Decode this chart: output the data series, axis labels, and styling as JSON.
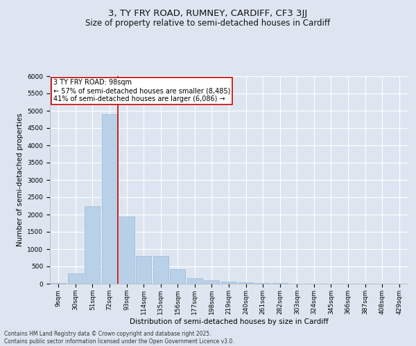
{
  "title1": "3, TY FRY ROAD, RUMNEY, CARDIFF, CF3 3JJ",
  "title2": "Size of property relative to semi-detached houses in Cardiff",
  "xlabel": "Distribution of semi-detached houses by size in Cardiff",
  "ylabel": "Number of semi-detached properties",
  "categories": [
    "9sqm",
    "30sqm",
    "51sqm",
    "72sqm",
    "93sqm",
    "114sqm",
    "135sqm",
    "156sqm",
    "177sqm",
    "198sqm",
    "219sqm",
    "240sqm",
    "261sqm",
    "282sqm",
    "303sqm",
    "324sqm",
    "345sqm",
    "366sqm",
    "387sqm",
    "408sqm",
    "429sqm"
  ],
  "values": [
    30,
    300,
    2250,
    4900,
    1950,
    800,
    800,
    420,
    165,
    110,
    65,
    40,
    20,
    12,
    8,
    5,
    3,
    2,
    1,
    1,
    0
  ],
  "bar_color": "#b8d0e8",
  "bar_edgecolor": "#9ab8d8",
  "vline_color": "#cc0000",
  "annotation_title": "3 TY FRY ROAD: 98sqm",
  "annotation_line1": "← 57% of semi-detached houses are smaller (8,485)",
  "annotation_line2": "41% of semi-detached houses are larger (6,086) →",
  "annotation_box_facecolor": "#ffffff",
  "annotation_box_edgecolor": "#cc0000",
  "ylim": [
    0,
    6000
  ],
  "yticks": [
    0,
    500,
    1000,
    1500,
    2000,
    2500,
    3000,
    3500,
    4000,
    4500,
    5000,
    5500,
    6000
  ],
  "bg_color": "#dde6f0",
  "plot_bg_color": "#dde6f0",
  "footer1": "Contains HM Land Registry data © Crown copyright and database right 2025.",
  "footer2": "Contains public sector information licensed under the Open Government Licence v3.0.",
  "title_fontsize": 9.5,
  "subtitle_fontsize": 8.5,
  "tick_fontsize": 6.5,
  "ylabel_fontsize": 7.5,
  "xlabel_fontsize": 7.5,
  "annotation_fontsize": 7,
  "footer_fontsize": 5.5
}
